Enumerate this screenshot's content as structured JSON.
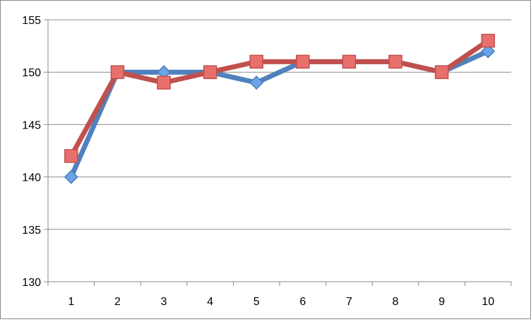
{
  "chart_data": {
    "type": "line",
    "title": "",
    "xlabel": "",
    "ylabel": "",
    "x": [
      1,
      2,
      3,
      4,
      5,
      6,
      7,
      8,
      9,
      10
    ],
    "ylim": [
      130,
      155
    ],
    "yticks": [
      130,
      135,
      140,
      145,
      150,
      155
    ],
    "grid": "horizontal",
    "legend": "none",
    "series": [
      {
        "values": [
          140,
          150,
          150,
          150,
          149,
          151,
          151,
          151,
          150,
          152
        ],
        "color": "#4f81bd",
        "marker_color": "#6aa3e8",
        "marker": "diamond"
      },
      {
        "values": [
          142,
          150,
          149,
          150,
          151,
          151,
          151,
          151,
          150,
          153
        ],
        "color": "#c0504d",
        "marker_color": "#e8706c",
        "marker": "square"
      }
    ]
  }
}
